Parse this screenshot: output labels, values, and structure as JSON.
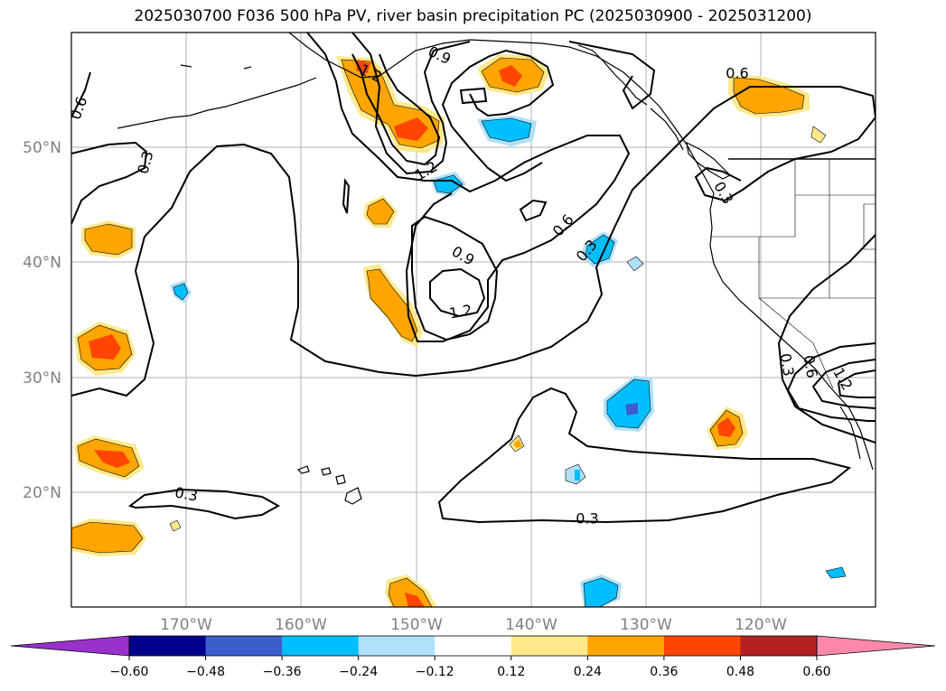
{
  "title": "2025030700 F036 500 hPa PV, river basin precipitation PC (2025030900 - 2025031200)",
  "map": {
    "lat_labels": [
      "50°N",
      "40°N",
      "30°N",
      "20°N"
    ],
    "lon_labels": [
      "170°W",
      "160°W",
      "150°W",
      "140°W",
      "130°W",
      "120°W"
    ],
    "contour_labels": [
      {
        "text": "0.6",
        "rot": -70
      },
      {
        "text": "1.2",
        "rot": 25
      },
      {
        "text": "0.9",
        "rot": 25
      },
      {
        "text": "0.6",
        "rot": 0
      },
      {
        "text": "0.3",
        "rot": -75
      },
      {
        "text": "1.2",
        "rot": -30
      },
      {
        "text": "0.9",
        "rot": 30
      },
      {
        "text": "0.6",
        "rot": -50
      },
      {
        "text": "0.3",
        "rot": -50
      },
      {
        "text": "1.2",
        "rot": -10
      },
      {
        "text": "0.3",
        "rot": 60
      },
      {
        "text": "0.3",
        "rot": 80
      },
      {
        "text": "0.6",
        "rot": 80
      },
      {
        "text": "1.2",
        "rot": 60
      },
      {
        "text": "0.3",
        "rot": 10
      },
      {
        "text": "0.3",
        "rot": 0
      }
    ]
  },
  "colorbar": {
    "ticks": [
      "−0.60",
      "−0.48",
      "−0.36",
      "−0.24",
      "−0.12",
      "0.12",
      "0.24",
      "0.36",
      "0.48",
      "0.60"
    ],
    "colors": [
      "#9932cc",
      "#00008b",
      "#3a5fcd",
      "#00bfff",
      "#afe1fa",
      "#ffffff",
      "#ffe98a",
      "#ffa500",
      "#ff4500",
      "#b22222",
      "#ff88aa"
    ]
  },
  "fill_colors": {
    "light_orange": "#ffe98a",
    "orange": "#ffa500",
    "red_orange": "#ff4500",
    "deep_sky": "#00bfff",
    "light_blue": "#afe1fa",
    "slate_blue": "#3a5fcd"
  }
}
